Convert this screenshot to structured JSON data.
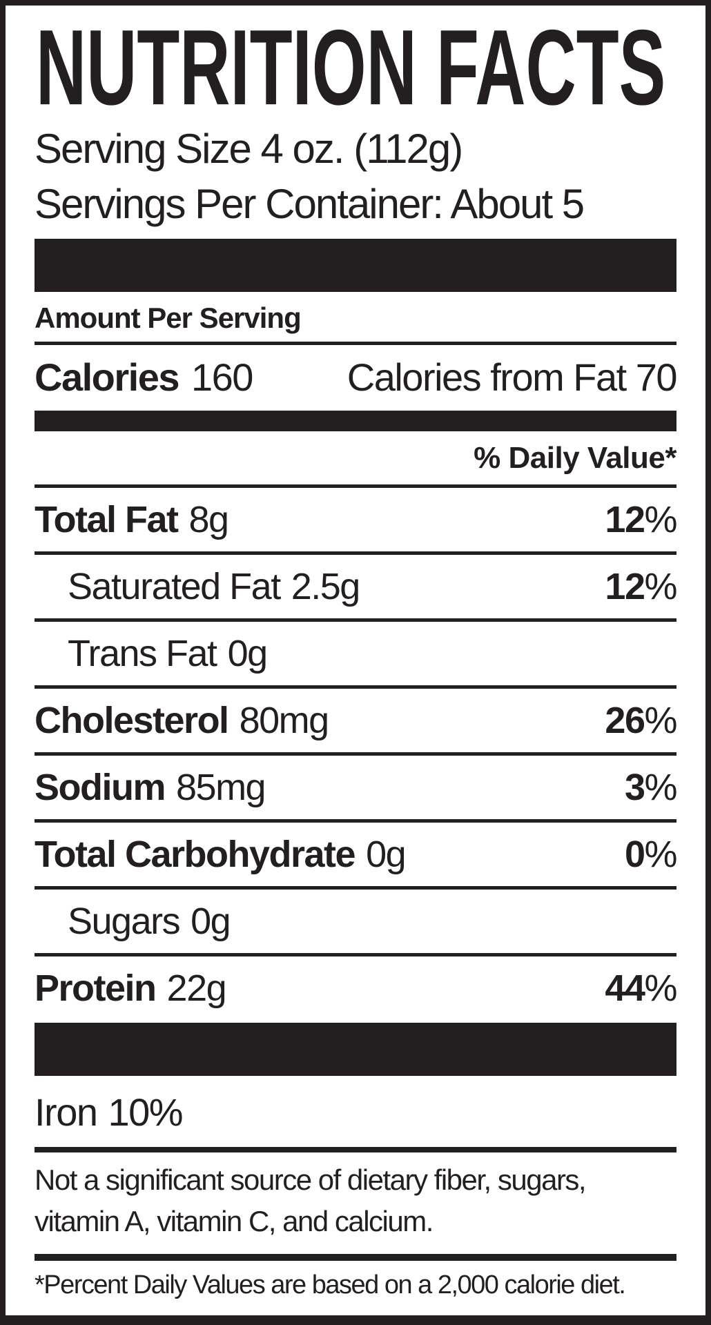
{
  "label": {
    "title": "NUTRITION FACTS",
    "serving": {
      "size_line": "Serving Size 4 oz. (112g)",
      "per_container_line": "Servings Per Container: About 5"
    },
    "amount_per_serving_heading": "Amount Per Serving",
    "calories": {
      "label": "Calories",
      "value": "160",
      "from_fat_label": "Calories from Fat",
      "from_fat_value": "70"
    },
    "daily_value_heading": "% Daily Value*",
    "percent_sign": "%",
    "rows": [
      {
        "name": "Total Fat",
        "amount": "8g",
        "dv": "12",
        "bold": true,
        "indent": false
      },
      {
        "name": "Saturated Fat",
        "amount": "2.5g",
        "dv": "12",
        "bold": false,
        "indent": true
      },
      {
        "name": "Trans Fat",
        "amount": "0g",
        "dv": "",
        "bold": false,
        "indent": true
      },
      {
        "name": "Cholesterol",
        "amount": "80mg",
        "dv": "26",
        "bold": true,
        "indent": false
      },
      {
        "name": "Sodium",
        "amount": "85mg",
        "dv": "3",
        "bold": true,
        "indent": false
      },
      {
        "name": "Total Carbohydrate",
        "amount": "0g",
        "dv": "0",
        "bold": true,
        "indent": false
      },
      {
        "name": "Sugars",
        "amount": "0g",
        "dv": "",
        "bold": false,
        "indent": true
      },
      {
        "name": "Protein",
        "amount": "22g",
        "dv": "44",
        "bold": true,
        "indent": false
      }
    ],
    "micronutrients": [
      {
        "name": "Iron",
        "value": "10%"
      }
    ],
    "disclaimer": "Not a significant source of dietary fiber, sugars, vitamin A, vitamin C, and calcium.",
    "footnote": "*Percent Daily Values are based on a 2,000 calorie diet.",
    "colors": {
      "ink": "#231f20",
      "background": "#ffffff"
    }
  }
}
